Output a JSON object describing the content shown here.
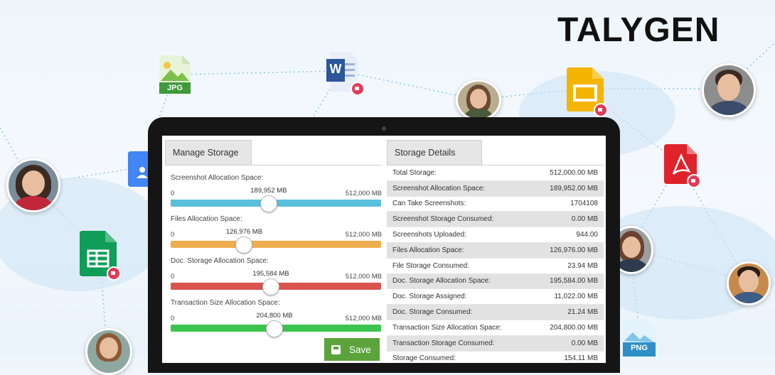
{
  "brand": {
    "logo_text": "TALYGEN"
  },
  "decor": {
    "jpg_label": "JPG",
    "png_label": "PNG",
    "word_letter": "W",
    "colors": {
      "sky": "#eef6fc",
      "network_line": "#8fc4e6",
      "word": "#2b579a",
      "slides": "#f4b400",
      "sheets": "#0f9d58",
      "pdf": "#e0222b",
      "docs_blue": "#4285f4"
    }
  },
  "manage_storage": {
    "title": "Manage Storage",
    "save_label": "Save",
    "sliders": [
      {
        "label": "Screenshot Allocation Space:",
        "min": "0",
        "max": "512,000 MB",
        "value_label": "189,952 MB",
        "value": 189952,
        "total": 512000,
        "color": "#5bc0de"
      },
      {
        "label": "Files Allocation Space:",
        "min": "0",
        "max": "512,000 MB",
        "value_label": "126,976 MB",
        "value": 126976,
        "total": 512000,
        "color": "#f0ad4e"
      },
      {
        "label": "Doc. Storage Allocation Space:",
        "min": "0",
        "max": "512,000 MB",
        "value_label": "195,584 MB",
        "value": 195584,
        "total": 512000,
        "color": "#d9534f"
      },
      {
        "label": "Transaction Size Allocation Space:",
        "min": "0",
        "max": "512,000 MB",
        "value_label": "204,800 MB",
        "value": 204800,
        "total": 512000,
        "color": "#3cc44e"
      }
    ]
  },
  "storage_details": {
    "title": "Storage Details",
    "rows": [
      {
        "label": "Total Storage:",
        "value": "512,000.00 MB"
      },
      {
        "label": "Screenshot Allocation Space:",
        "value": "189,952.00 MB"
      },
      {
        "label": "Can Take Screenshots:",
        "value": "1704108"
      },
      {
        "label": "Screenshot Storage Consumed:",
        "value": "0.00 MB"
      },
      {
        "label": "Screenshots Uploaded:",
        "value": "944.00"
      },
      {
        "label": "Files Allocation Space:",
        "value": "126,976.00 MB"
      },
      {
        "label": "File Storage Consumed:",
        "value": "23.94 MB"
      },
      {
        "label": "Doc. Storage Allocation Space:",
        "value": "195,584.00 MB"
      },
      {
        "label": "Doc. Storage Assigned:",
        "value": "11,022.00 MB"
      },
      {
        "label": "Doc. Storage Consumed:",
        "value": "21.24 MB"
      },
      {
        "label": "Transaction Size Allocation Space:",
        "value": "204,800.00 MB"
      },
      {
        "label": "Transaction Storage Consumed:",
        "value": "0.00 MB"
      },
      {
        "label": "Storage Consumed:",
        "value": "154.11 MB"
      }
    ]
  }
}
